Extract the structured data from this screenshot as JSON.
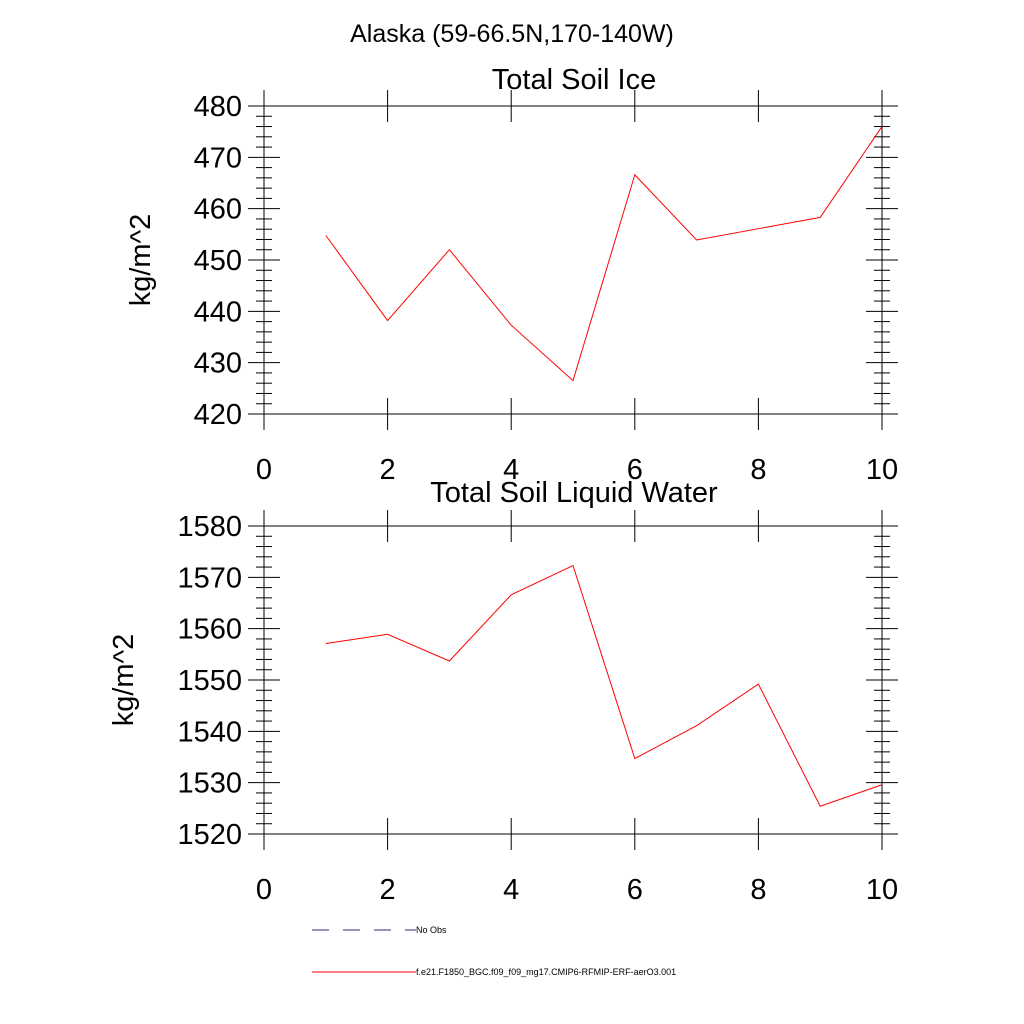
{
  "figure": {
    "suptitle": "Alaska (59-66.5N,170-140W)"
  },
  "chart_data": [
    {
      "type": "line",
      "title": "Total Soil Ice",
      "xlabel": "",
      "ylabel": "kg/m^2",
      "xlim": [
        0,
        10
      ],
      "ylim": [
        420,
        480
      ],
      "xticks": [
        0,
        2,
        4,
        6,
        8,
        10
      ],
      "yticks": [
        420,
        430,
        440,
        450,
        460,
        470,
        480
      ],
      "x": [
        1,
        2,
        3,
        4,
        5,
        6,
        7,
        8,
        9,
        10
      ],
      "series": [
        {
          "color": "#ff0000",
          "values": [
            454.8,
            438.2,
            452.0,
            437.3,
            426.5,
            466.6,
            453.9,
            456.1,
            458.3,
            476.0
          ]
        }
      ]
    },
    {
      "type": "line",
      "title": "Total Soil Liquid Water",
      "xlabel": "",
      "ylabel": "kg/m^2",
      "xlim": [
        0,
        10
      ],
      "ylim": [
        1520,
        1580
      ],
      "xticks": [
        0,
        2,
        4,
        6,
        8,
        10
      ],
      "yticks": [
        1520,
        1530,
        1540,
        1550,
        1560,
        1570,
        1580
      ],
      "x": [
        1,
        2,
        3,
        4,
        5,
        6,
        7,
        8,
        9,
        10
      ],
      "series": [
        {
          "color": "#ff0000",
          "values": [
            1557.1,
            1558.9,
            1553.7,
            1566.6,
            1572.3,
            1534.7,
            1541.1,
            1549.2,
            1525.4,
            1529.6
          ]
        }
      ]
    }
  ],
  "legend": {
    "items": [
      {
        "label": "No Obs",
        "color": "#2b2b7f",
        "dash": true
      },
      {
        "label": "f.e21.F1850_BGC.f09_f09_mg17.CMIP6-RFMIP-ERF-aerO3.001",
        "color": "#ff0000",
        "dash": false
      }
    ]
  }
}
